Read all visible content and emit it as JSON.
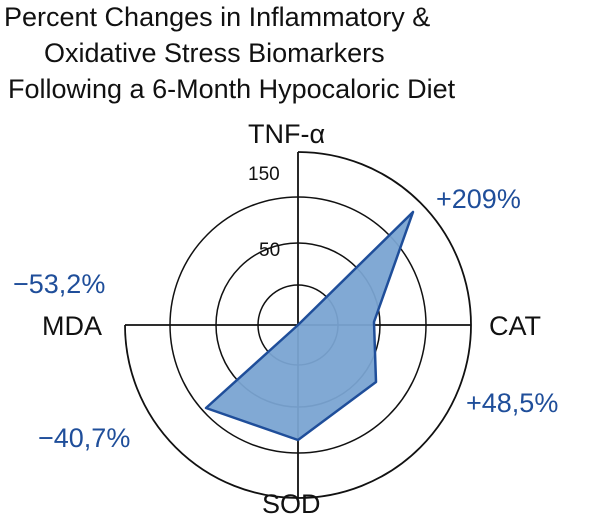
{
  "chart_data": {
    "type": "radar",
    "title_lines": [
      "Percent Changes in Inflammatory &",
      "Oxidative Stress Biomarkers",
      "Following a 6-Month Hypocaloric Diet"
    ],
    "axes": [
      "TNF-α",
      "CAT",
      "SOD",
      "MDA"
    ],
    "percent_labels": [
      "+209%",
      "+48,5%",
      "−40,7%",
      "−53,2%"
    ],
    "tick_labels": [
      "150",
      "50"
    ],
    "fill_color": "#7aa4d2",
    "stroke_color": "#1f4e9a",
    "label_color": "#1f4e9a"
  }
}
